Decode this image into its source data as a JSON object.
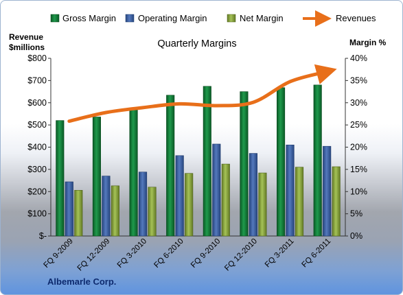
{
  "chart_data": {
    "type": "bar",
    "title": "Quarterly Margins",
    "company": "Albemarle Corp.",
    "left_axis_title_1": "Revenue",
    "left_axis_title_2": "$millions",
    "right_axis_title": "Margin  %",
    "categories": [
      "FQ 9-2009",
      "FQ 12-2009",
      "FQ 3-2010",
      "FQ 6-2010",
      "FQ 9-2010",
      "FQ 12-2010",
      "FQ 3-2011",
      "FQ 6-2011"
    ],
    "left_ticks": [
      "$-",
      "$100",
      "$200",
      "$300",
      "$400",
      "$500",
      "$600",
      "$700",
      "$800"
    ],
    "right_ticks": [
      "0%",
      "5%",
      "10%",
      "15%",
      "20%",
      "25%",
      "30%",
      "35%",
      "40%"
    ],
    "ylim_left": [
      0,
      800
    ],
    "ylim_right": [
      0,
      40
    ],
    "legend_position": "top",
    "grid": false,
    "series": [
      {
        "name": "Gross Margin",
        "type": "bar",
        "axis": "right",
        "color": "#0f7a36",
        "values": [
          26.0,
          26.8,
          28.4,
          31.7,
          33.7,
          32.5,
          33.4,
          34.0
        ]
      },
      {
        "name": "Operating Margin",
        "type": "bar",
        "axis": "right",
        "color": "#3d64a8",
        "values": [
          12.2,
          13.5,
          14.4,
          18.1,
          20.7,
          18.6,
          20.5,
          20.2
        ]
      },
      {
        "name": "Net Margin",
        "type": "bar",
        "axis": "right",
        "color": "#8fad3f",
        "values": [
          10.3,
          11.3,
          11.0,
          14.1,
          16.2,
          14.2,
          15.5,
          15.6
        ]
      },
      {
        "name": "Revenues",
        "type": "line",
        "axis": "left",
        "color": "#e86f1a",
        "values": [
          517,
          556,
          578,
          595,
          587,
          602,
          695,
          740
        ]
      }
    ]
  }
}
